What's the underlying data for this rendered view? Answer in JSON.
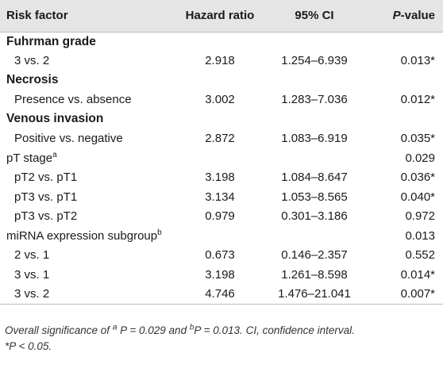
{
  "table": {
    "headers": [
      "Risk factor",
      "Hazard ratio",
      "95% CI",
      "P",
      "-value"
    ],
    "rows": [
      {
        "kind": "section",
        "label": "Fuhrman grade",
        "sup": "",
        "hr": "",
        "ci": "",
        "p": ""
      },
      {
        "kind": "sub",
        "label": "3 vs. 2",
        "sup": "",
        "hr": "2.918",
        "ci": "1.254–6.939",
        "p": "0.013*"
      },
      {
        "kind": "section",
        "label": "Necrosis",
        "sup": "",
        "hr": "",
        "ci": "",
        "p": ""
      },
      {
        "kind": "sub",
        "label": "Presence vs. absence",
        "sup": "",
        "hr": "3.002",
        "ci": "1.283–7.036",
        "p": "0.012*"
      },
      {
        "kind": "section",
        "label": "Venous invasion",
        "sup": "",
        "hr": "",
        "ci": "",
        "p": ""
      },
      {
        "kind": "sub",
        "label": "Positive vs. negative",
        "sup": "",
        "hr": "2.872",
        "ci": "1.083–6.919",
        "p": "0.035*"
      },
      {
        "kind": "group",
        "label": "pT stage",
        "sup": "a",
        "hr": "",
        "ci": "",
        "p": "0.029"
      },
      {
        "kind": "sub",
        "label": "pT2 vs. pT1",
        "sup": "",
        "hr": "3.198",
        "ci": "1.084–8.647",
        "p": "0.036*"
      },
      {
        "kind": "sub",
        "label": "pT3 vs. pT1",
        "sup": "",
        "hr": "3.134",
        "ci": "1.053–8.565",
        "p": "0.040*"
      },
      {
        "kind": "sub",
        "label": "pT3 vs. pT2",
        "sup": "",
        "hr": "0.979",
        "ci": "0.301–3.186",
        "p": "0.972"
      },
      {
        "kind": "group",
        "label": "miRNA expression subgroup",
        "sup": "b",
        "hr": "",
        "ci": "",
        "p": "0.013"
      },
      {
        "kind": "sub",
        "label": "2 vs. 1",
        "sup": "",
        "hr": "0.673",
        "ci": "0.146–2.357",
        "p": "0.552"
      },
      {
        "kind": "sub",
        "label": "3 vs. 1",
        "sup": "",
        "hr": "3.198",
        "ci": "1.261–8.598",
        "p": "0.014*"
      },
      {
        "kind": "sub",
        "label": "3 vs. 2",
        "sup": "",
        "hr": "4.746",
        "ci": "1.476–21.041",
        "p": "0.007*"
      }
    ]
  },
  "footnote": {
    "line1_prefix": "Overall significance of ",
    "sup_a": "a",
    "line1_mid": " P = 0.029 and ",
    "sup_b": "b",
    "line1_suffix": "P = 0.013. CI, confidence interval.",
    "line2": "*P < 0.05."
  }
}
